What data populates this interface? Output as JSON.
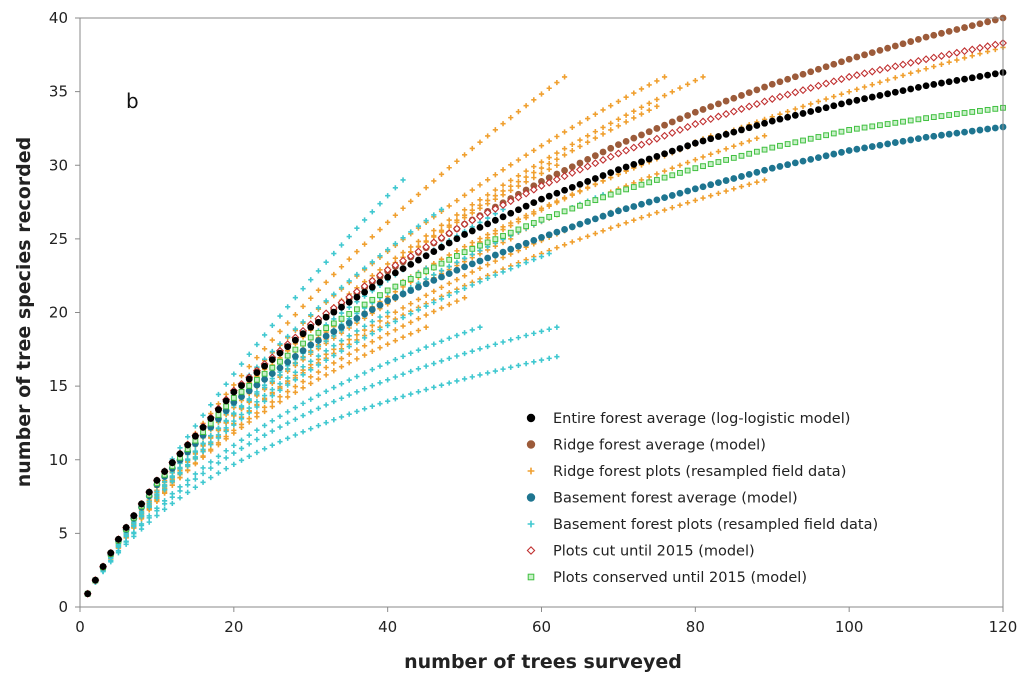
{
  "chart_data": {
    "type": "scatter",
    "panel_label": "b",
    "xlabel": "number of trees surveyed",
    "ylabel": "number of tree species recorded",
    "xlim": [
      0,
      120
    ],
    "ylim": [
      0,
      40
    ],
    "x_ticks": [
      0,
      20,
      40,
      60,
      80,
      100,
      120
    ],
    "y_ticks": [
      0,
      5,
      10,
      15,
      20,
      25,
      30,
      35,
      40
    ],
    "grid": false,
    "legend_position": "bottom-right",
    "series": [
      {
        "name": "Entire forest average (log-logistic model)",
        "kind": "model",
        "marker": "filled-circle",
        "color": "#000000",
        "x": [
          1,
          5,
          10,
          20,
          30,
          40,
          50,
          60,
          70,
          80,
          90,
          100,
          110,
          120
        ],
        "y": [
          0.9,
          4.6,
          8.6,
          14.6,
          19.0,
          22.4,
          25.3,
          27.7,
          29.7,
          31.5,
          33.0,
          34.3,
          35.4,
          36.3
        ]
      },
      {
        "name": "Ridge forest average (model)",
        "kind": "model",
        "marker": "filled-circle",
        "color": "#9c5b3a",
        "x": [
          1,
          5,
          10,
          20,
          30,
          40,
          50,
          60,
          70,
          80,
          90,
          100,
          110,
          120
        ],
        "y": [
          0.9,
          4.6,
          8.6,
          14.6,
          19.1,
          22.8,
          26.0,
          28.9,
          31.4,
          33.6,
          35.5,
          37.2,
          38.7,
          40.0
        ]
      },
      {
        "name": "Ridge forest plots (resampled field data)",
        "kind": "plots",
        "marker": "plus",
        "color": "#f0a030",
        "plots": [
          {
            "n": 63,
            "s": 36
          },
          {
            "n": 76,
            "s": 36
          },
          {
            "n": 81,
            "s": 36
          },
          {
            "n": 75,
            "s": 34
          },
          {
            "n": 62,
            "s": 30
          },
          {
            "n": 82,
            "s": 32
          },
          {
            "n": 89,
            "s": 32
          },
          {
            "n": 89,
            "s": 29
          },
          {
            "n": 70,
            "s": 27
          },
          {
            "n": 56,
            "s": 25
          },
          {
            "n": 50,
            "s": 21
          },
          {
            "n": 45,
            "s": 19
          },
          {
            "n": 120,
            "s": 38
          }
        ]
      },
      {
        "name": "Basement forest average (model)",
        "kind": "model",
        "marker": "filled-circle",
        "color": "#1e7590",
        "x": [
          1,
          5,
          10,
          20,
          30,
          40,
          50,
          60,
          70,
          80,
          90,
          100,
          110,
          120
        ],
        "y": [
          0.9,
          4.5,
          8.3,
          13.9,
          17.8,
          20.8,
          23.1,
          25.1,
          26.9,
          28.4,
          29.8,
          31.0,
          31.9,
          32.6
        ]
      },
      {
        "name": "Basement forest plots (resampled field data)",
        "kind": "plots",
        "marker": "plus",
        "color": "#40c8d0",
        "plots": [
          {
            "n": 52,
            "s": 19
          },
          {
            "n": 62,
            "s": 19
          },
          {
            "n": 62,
            "s": 17
          },
          {
            "n": 61,
            "s": 24
          },
          {
            "n": 55,
            "s": 27
          },
          {
            "n": 47,
            "s": 27
          },
          {
            "n": 68,
            "s": 28
          },
          {
            "n": 42,
            "s": 29
          },
          {
            "n": 45,
            "s": 23
          },
          {
            "n": 40,
            "s": 20
          }
        ]
      },
      {
        "name": "Plots cut until 2015 (model)",
        "kind": "model",
        "marker": "open-diamond",
        "color": "#c03030",
        "x": [
          1,
          5,
          10,
          20,
          30,
          40,
          50,
          60,
          70,
          80,
          90,
          100,
          110,
          120
        ],
        "y": [
          0.9,
          4.6,
          8.6,
          14.7,
          19.2,
          22.9,
          26.0,
          28.6,
          30.8,
          32.8,
          34.5,
          36.0,
          37.2,
          38.3
        ]
      },
      {
        "name": "Plots conserved until 2015 (model)",
        "kind": "model",
        "marker": "open-square",
        "color": "#40c040",
        "x": [
          1,
          5,
          10,
          20,
          30,
          40,
          50,
          60,
          70,
          80,
          90,
          100,
          110,
          120
        ],
        "y": [
          0.9,
          4.5,
          8.4,
          14.2,
          18.3,
          21.5,
          24.1,
          26.3,
          28.2,
          29.8,
          31.2,
          32.4,
          33.2,
          33.9
        ]
      }
    ]
  }
}
